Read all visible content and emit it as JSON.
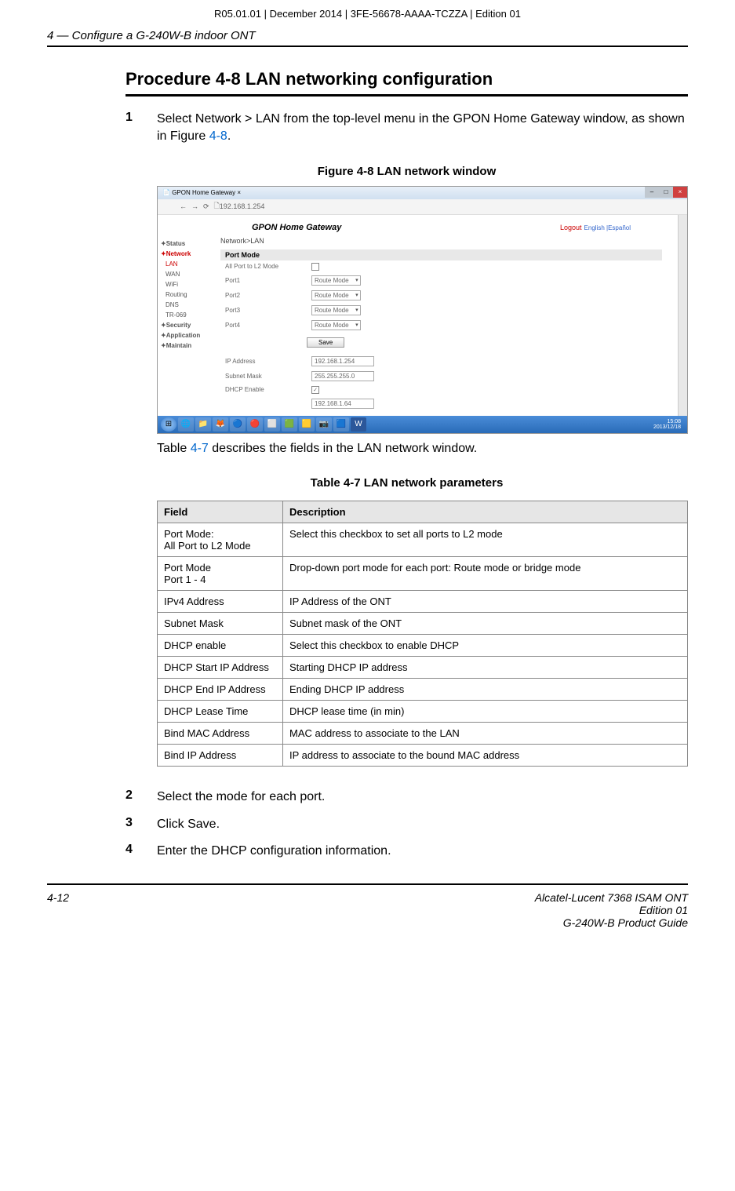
{
  "top_id": "R05.01.01 | December 2014 | 3FE-56678-AAAA-TCZZA | Edition 01",
  "header_left": "4 —  Configure a G-240W-B indoor ONT",
  "procedure_title": "Procedure 4-8  LAN networking configuration",
  "step1_num": "1",
  "step1_text_a": "Select Network > LAN from the top-level menu in the GPON Home Gateway window, as shown in Figure ",
  "step1_link": "4-8",
  "step1_text_b": ".",
  "figure_caption": "Figure 4-8  LAN network window",
  "pre_table_a": "Table ",
  "pre_table_link": "4-7",
  "pre_table_b": " describes the fields in the LAN network window.",
  "table_caption": "Table 4-7 LAN network parameters",
  "table": {
    "headers": [
      "Field",
      "Description"
    ],
    "rows": [
      [
        "Port Mode:\nAll Port to L2 Mode",
        "Select this checkbox to set all ports to L2 mode"
      ],
      [
        "Port Mode\nPort 1 - 4",
        "Drop-down port mode for each port: Route mode or bridge mode"
      ],
      [
        "IPv4 Address",
        "IP Address of the ONT"
      ],
      [
        "Subnet Mask",
        "Subnet mask of the ONT"
      ],
      [
        "DHCP enable",
        "Select this checkbox to enable DHCP"
      ],
      [
        "DHCP Start IP Address",
        "Starting DHCP IP address"
      ],
      [
        "DHCP End IP Address",
        "Ending DHCP IP address"
      ],
      [
        "DHCP Lease Time",
        "DHCP lease time (in min)"
      ],
      [
        "Bind MAC Address",
        "MAC address to associate to the LAN"
      ],
      [
        "Bind IP Address",
        "IP address to associate to the bound MAC address"
      ]
    ]
  },
  "step2_num": "2",
  "step2_text": "Select the mode for each port.",
  "step3_num": "3",
  "step3_text": "Click Save.",
  "step4_num": "4",
  "step4_text": "Enter the DHCP configuration information.",
  "footer_left": "4-12",
  "footer_r1": "Alcatel-Lucent 7368 ISAM ONT",
  "footer_r2": "Edition 01",
  "footer_r3": "G-240W-B Product Guide",
  "screenshot": {
    "tab_title": "GPON Home Gateway",
    "url": "192.168.1.254",
    "brand": "GPON Home Gateway",
    "logout": "Logout",
    "lang": "English |Español",
    "crumb": "Network>LAN",
    "sidebar": {
      "status": "Status",
      "network": "Network",
      "lan": "LAN",
      "wan": "WAN",
      "wifi": "WiFi",
      "routing": "Routing",
      "dns": "DNS",
      "tr069": "TR-069",
      "security": "Security",
      "application": "Application",
      "maintain": "Maintain"
    },
    "section_port": "Port Mode",
    "allport_label": "All Port to L2 Mode",
    "port1": "Port1",
    "port2": "Port2",
    "port3": "Port3",
    "port4": "Port4",
    "routemode": "Route Mode",
    "save": "Save",
    "ipaddr_label": "IP Address",
    "ipaddr_val": "192.168.1.254",
    "subnet_label": "Subnet Mask",
    "subnet_val": "255.255.255.0",
    "dhcp_label": "DHCP Enable",
    "dhcpstart_val": "192.168.1.64",
    "clock_time": "15:08",
    "clock_date": "2013/12/18"
  },
  "colors": {
    "link": "#0066cc",
    "rule": "#000000",
    "table_header_bg": "#e6e6e6",
    "table_border": "#888888"
  }
}
